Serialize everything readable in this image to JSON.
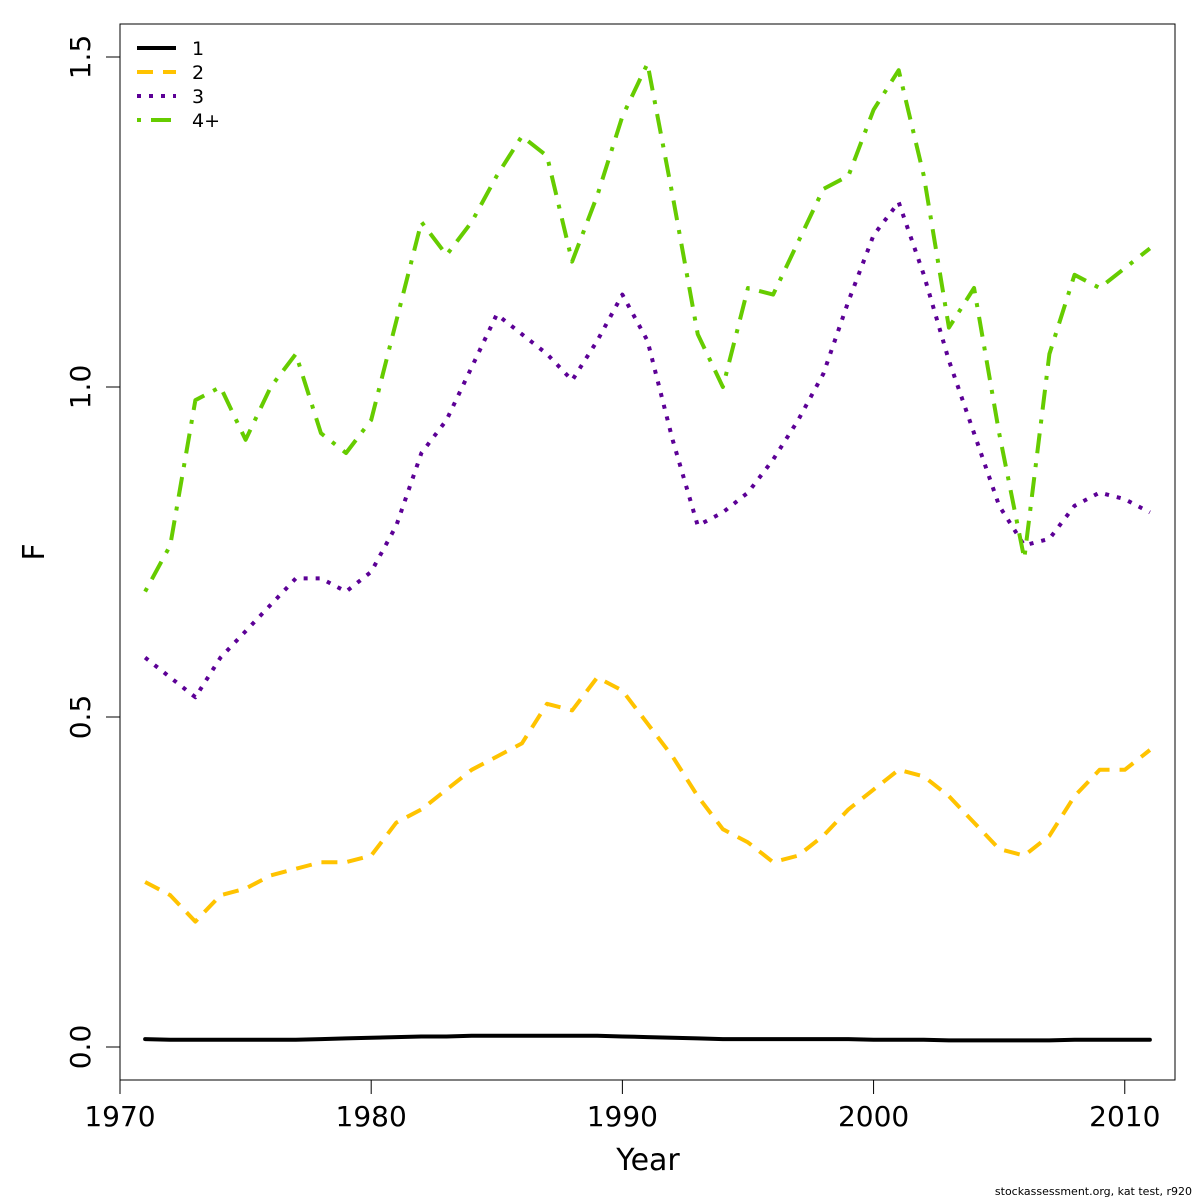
{
  "chart_data": {
    "type": "line",
    "title": "",
    "xlabel": "Year",
    "ylabel": "F",
    "xlim": [
      1970,
      2012
    ],
    "ylim": [
      -0.05,
      1.55
    ],
    "xticks": [
      1970,
      1980,
      1990,
      2000,
      2010
    ],
    "xtick_labels": [
      "1970",
      "1980",
      "1990",
      "2000",
      "2010"
    ],
    "yticks": [
      0.0,
      0.5,
      1.0,
      1.5
    ],
    "ytick_labels": [
      "0.0",
      "0.5",
      "1.0",
      "1.5"
    ],
    "grid": false,
    "legend_position": "top-left",
    "x": [
      1971,
      1972,
      1973,
      1974,
      1975,
      1976,
      1977,
      1978,
      1979,
      1980,
      1981,
      1982,
      1983,
      1984,
      1985,
      1986,
      1987,
      1988,
      1989,
      1990,
      1991,
      1992,
      1993,
      1994,
      1995,
      1996,
      1997,
      1998,
      1999,
      2000,
      2001,
      2002,
      2003,
      2004,
      2005,
      2006,
      2007,
      2008,
      2009,
      2010,
      2011
    ],
    "series": [
      {
        "name": "1",
        "color": "#000000",
        "dash": "solid",
        "values": [
          0.012,
          0.011,
          0.011,
          0.011,
          0.011,
          0.011,
          0.011,
          0.012,
          0.013,
          0.014,
          0.015,
          0.016,
          0.016,
          0.017,
          0.017,
          0.017,
          0.017,
          0.017,
          0.017,
          0.016,
          0.015,
          0.014,
          0.013,
          0.012,
          0.012,
          0.012,
          0.012,
          0.012,
          0.012,
          0.011,
          0.011,
          0.011,
          0.01,
          0.01,
          0.01,
          0.01,
          0.01,
          0.011,
          0.011,
          0.011,
          0.011
        ]
      },
      {
        "name": "2",
        "color": "#ffc300",
        "dash": "dashed",
        "values": [
          0.25,
          0.23,
          0.19,
          0.23,
          0.24,
          0.26,
          0.27,
          0.28,
          0.28,
          0.29,
          0.34,
          0.36,
          0.39,
          0.42,
          0.44,
          0.46,
          0.52,
          0.51,
          0.56,
          0.54,
          0.49,
          0.44,
          0.38,
          0.33,
          0.31,
          0.28,
          0.29,
          0.32,
          0.36,
          0.39,
          0.42,
          0.41,
          0.38,
          0.34,
          0.3,
          0.29,
          0.32,
          0.38,
          0.42,
          0.42,
          0.45
        ]
      },
      {
        "name": "3",
        "color": "#5c0096",
        "dash": "dotted",
        "values": [
          0.59,
          0.56,
          0.53,
          0.59,
          0.63,
          0.67,
          0.71,
          0.71,
          0.69,
          0.72,
          0.79,
          0.9,
          0.95,
          1.03,
          1.11,
          1.08,
          1.05,
          1.01,
          1.07,
          1.14,
          1.07,
          0.92,
          0.79,
          0.81,
          0.84,
          0.89,
          0.95,
          1.02,
          1.13,
          1.23,
          1.28,
          1.17,
          1.04,
          0.93,
          0.82,
          0.76,
          0.77,
          0.82,
          0.84,
          0.83,
          0.81
        ]
      },
      {
        "name": "4+",
        "color": "#66cc00",
        "dash": "dotdash",
        "values": [
          0.69,
          0.76,
          0.98,
          1.0,
          0.92,
          1.0,
          1.05,
          0.93,
          0.9,
          0.95,
          1.1,
          1.25,
          1.2,
          1.25,
          1.32,
          1.38,
          1.35,
          1.19,
          1.29,
          1.41,
          1.49,
          1.29,
          1.08,
          1.0,
          1.15,
          1.14,
          1.22,
          1.3,
          1.32,
          1.42,
          1.48,
          1.32,
          1.09,
          1.15,
          0.93,
          0.74,
          1.05,
          1.17,
          1.15,
          1.18,
          1.21
        ]
      }
    ]
  },
  "footer": {
    "note": "stockassessment.org, kat test, r920"
  }
}
